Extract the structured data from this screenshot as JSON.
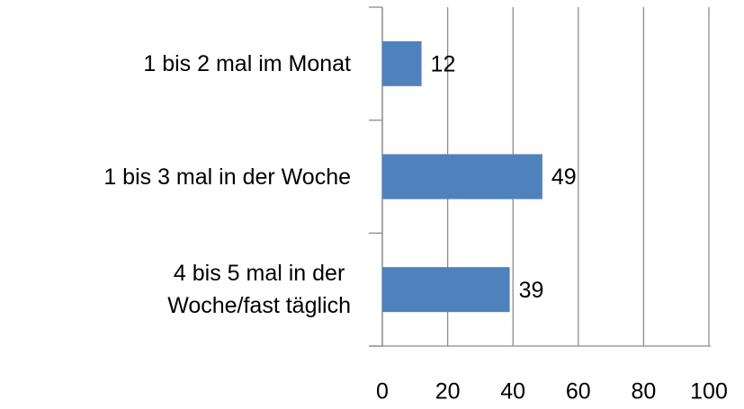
{
  "chart_data": {
    "type": "bar",
    "orientation": "horizontal",
    "categories": [
      "1 bis 2 mal im Monat",
      "1 bis 3 mal in der Woche",
      "4 bis 5 mal in der\nWoche/fast täglich"
    ],
    "values": [
      12,
      49,
      39
    ],
    "color": "#4f81bd",
    "xlim": [
      0,
      100
    ],
    "xticks": [
      0,
      20,
      40,
      60,
      80,
      100
    ],
    "grid": true
  }
}
